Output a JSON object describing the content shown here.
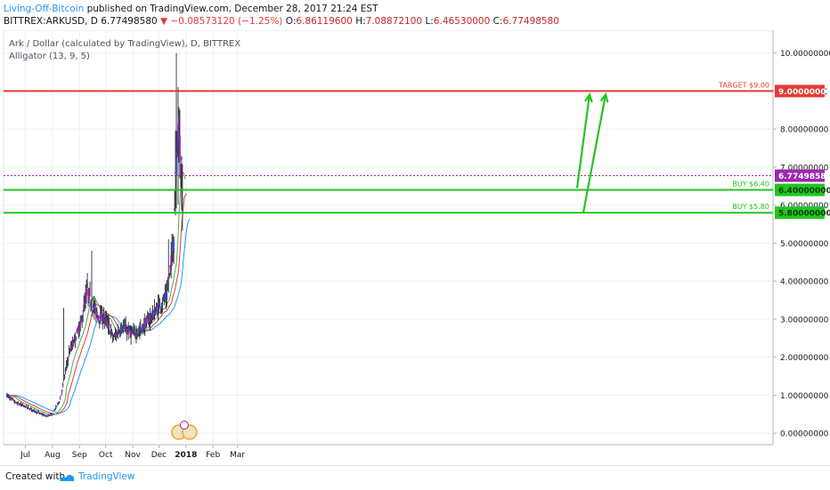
{
  "header": {
    "author": "Living-Off-Bitcoin",
    "published_text": " published on TradingView.com, December 28, 2017 21:24 EST",
    "symbol": "BITTREX:ARKUSD, D",
    "price": "6.77498580",
    "change": "▼ −0.08573120 (−1.25%)",
    "o_label": "O:",
    "o_value": "6.86119600",
    "h_label": "H:",
    "h_value": "7.08872100",
    "l_label": "L:",
    "l_value": "6.46530000",
    "c_label": "C:",
    "c_value": "6.77498580"
  },
  "legend": {
    "title": "Ark / Dollar (calculated by TradingView), D, BITTREX",
    "indicator": "Alligator (13, 9, 5)"
  },
  "footer": {
    "created_with": "Created with",
    "brand": "TradingView"
  },
  "chart_data": {
    "type": "candlestick",
    "title": "Ark / Dollar (calculated by TradingView), D, BITTREX",
    "x_ticks": [
      "Jul",
      "Aug",
      "Sep",
      "Oct",
      "Nov",
      "Dec",
      "2018",
      "Feb",
      "Mar"
    ],
    "y_ticks": [
      "10.00000000",
      "9.00000000",
      "8.00000000",
      "7.00000000",
      "6.00000000",
      "5.00000000",
      "4.00000000",
      "3.00000000",
      "2.00000000",
      "1.00000000",
      "0.00000000"
    ],
    "y_range": [
      -0.3,
      10.6
    ],
    "horizontal_lines": [
      {
        "label": "TARGET $9.00",
        "value": 9.0,
        "price_tag": "9.00000000",
        "color": "#e53935"
      },
      {
        "label": "BUY $6.40",
        "value": 6.4,
        "price_tag": "6.40000000",
        "color": "#22c51f"
      },
      {
        "label": "BUY $5.80",
        "value": 5.8,
        "price_tag": "5.80000000",
        "color": "#22c51f"
      }
    ],
    "last_price": {
      "value": 6.775,
      "price_tag": "6.77498580",
      "color": "#9c27b0"
    },
    "projection_arrows": [
      {
        "from_value": 6.45,
        "to_value": 9.0
      },
      {
        "from_value": 5.8,
        "to_value": 9.0
      }
    ],
    "price_path": [
      {
        "date": "2017-06-10",
        "close": 1.0
      },
      {
        "date": "2017-06-20",
        "close": 0.8
      },
      {
        "date": "2017-07-01",
        "close": 0.7
      },
      {
        "date": "2017-07-15",
        "close": 0.55
      },
      {
        "date": "2017-07-25",
        "close": 0.45
      },
      {
        "date": "2017-08-01",
        "close": 0.5
      },
      {
        "date": "2017-08-10",
        "close": 0.9
      },
      {
        "date": "2017-08-15",
        "close": 1.5
      },
      {
        "date": "2017-08-20",
        "close": 2.1
      },
      {
        "date": "2017-08-27",
        "close": 2.5
      },
      {
        "date": "2017-09-03",
        "close": 2.9
      },
      {
        "date": "2017-09-10",
        "close": 3.8
      },
      {
        "date": "2017-09-15",
        "close": 3.4
      },
      {
        "date": "2017-09-22",
        "close": 3.1
      },
      {
        "date": "2017-10-01",
        "close": 3.0
      },
      {
        "date": "2017-10-10",
        "close": 2.5
      },
      {
        "date": "2017-10-20",
        "close": 2.8
      },
      {
        "date": "2017-11-01",
        "close": 2.6
      },
      {
        "date": "2017-11-10",
        "close": 2.7
      },
      {
        "date": "2017-11-20",
        "close": 3.0
      },
      {
        "date": "2017-11-27",
        "close": 3.2
      },
      {
        "date": "2017-12-03",
        "close": 3.4
      },
      {
        "date": "2017-12-10",
        "close": 3.6
      },
      {
        "date": "2017-12-15",
        "close": 4.5
      },
      {
        "date": "2017-12-18",
        "close": 5.2
      },
      {
        "date": "2017-12-20",
        "close": 7.0
      },
      {
        "date": "2017-12-22",
        "close": 8.0
      },
      {
        "date": "2017-12-25",
        "close": 7.5
      },
      {
        "date": "2017-12-28",
        "close": 6.77
      }
    ]
  },
  "colors": {
    "candle_up": "#3f51b5",
    "candle_down": "#9c27b0",
    "jaw": "#2196f3",
    "teeth": "#e53935",
    "lips": "#4caf50",
    "arrow": "#22c51f",
    "grid": "#eef0f3",
    "axis_text": "#131722"
  }
}
